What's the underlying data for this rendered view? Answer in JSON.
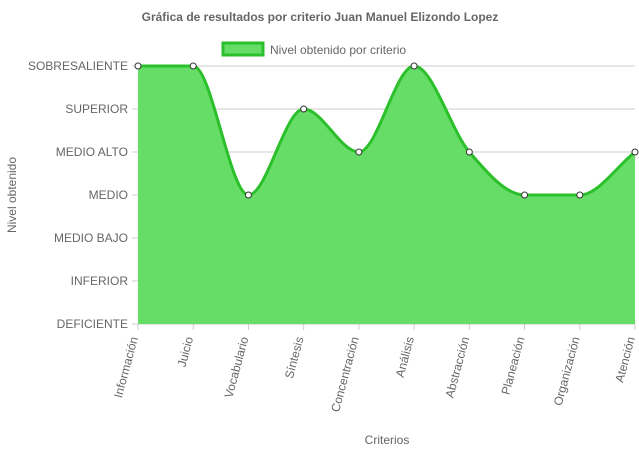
{
  "chart_data": {
    "type": "area",
    "title": "Gráfica de resultados por criterio Juan Manuel Elizondo Lopez",
    "xlabel": "Criterios",
    "ylabel": "Nivel obtenido",
    "y_levels": [
      "DEFICIENTE",
      "INFERIOR",
      "MEDIO BAJO",
      "MEDIO",
      "MEDIO ALTO",
      "SUPERIOR",
      "SOBRESALIENTE"
    ],
    "categories": [
      "Información",
      "Juicio",
      "Vocabulario",
      "Síntesis",
      "Concentración",
      "Análisis",
      "Abstracción",
      "Planeación",
      "Organización",
      "Atención"
    ],
    "series": [
      {
        "name": "Nivel obtenido por criterio",
        "values": [
          "SOBRESALIENTE",
          "SOBRESALIENTE",
          "MEDIO",
          "SUPERIOR",
          "MEDIO ALTO",
          "SOBRESALIENTE",
          "MEDIO ALTO",
          "MEDIO",
          "MEDIO",
          "MEDIO ALTO"
        ],
        "fill_color": "#66dd66",
        "line_color": "#2bc02b"
      }
    ],
    "legend_position": "top",
    "grid": true,
    "gridline_color": "#cccccc",
    "text_color": "#666666"
  }
}
